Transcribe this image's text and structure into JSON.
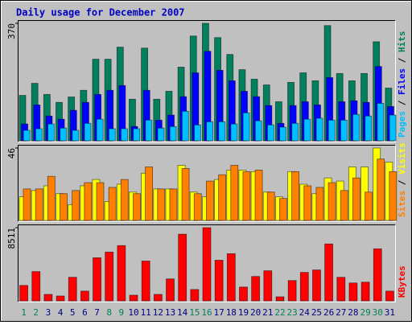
{
  "chart_data": [
    {
      "type": "bar",
      "title": "Daily usage for December 2007",
      "ylim": [
        0,
        370
      ],
      "yticks": [
        370
      ],
      "legend_separator": " / ",
      "series": [
        {
          "name": "Pages",
          "color": "#00c0ff",
          "values": [
            33,
            38,
            53,
            40,
            33,
            55,
            68,
            38,
            38,
            38,
            65,
            40,
            45,
            93,
            50,
            60,
            60,
            53,
            88,
            63,
            50,
            43,
            55,
            68,
            71,
            65,
            65,
            83,
            78,
            118,
            81
          ]
        },
        {
          "name": "Files",
          "color": "#0000ff",
          "values": [
            53,
            113,
            78,
            68,
            96,
            121,
            146,
            159,
            174,
            45,
            159,
            65,
            81,
            139,
            214,
            282,
            222,
            189,
            156,
            139,
            111,
            55,
            111,
            123,
            113,
            199,
            123,
            126,
            121,
            234,
            108
          ]
        },
        {
          "name": "Hits",
          "color": "#00805c",
          "values": [
            143,
            181,
            146,
            121,
            138,
            159,
            257,
            257,
            295,
            131,
            292,
            131,
            156,
            232,
            330,
            370,
            325,
            272,
            224,
            194,
            176,
            123,
            184,
            214,
            189,
            363,
            212,
            189,
            212,
            312,
            166
          ]
        }
      ]
    },
    {
      "type": "bar",
      "ylim": [
        0,
        46
      ],
      "yticks": [
        46
      ],
      "legend_separator": " / ",
      "series": [
        {
          "name": "Sites",
          "color": "#ff8000",
          "values": [
            20,
            20,
            28,
            17,
            19,
            24,
            24,
            21,
            26,
            17,
            34,
            20,
            20,
            33,
            17,
            25,
            29,
            35,
            31,
            32,
            18,
            14,
            31,
            22,
            21,
            24,
            19,
            27,
            18,
            39,
            31
          ]
        },
        {
          "name": "Visits",
          "color": "#ffff00",
          "values": [
            15,
            19,
            22,
            17,
            10,
            22,
            26,
            12,
            23,
            18,
            30,
            20,
            20,
            35,
            18,
            15,
            26,
            32,
            32,
            31,
            18,
            15,
            31,
            23,
            17,
            27,
            25,
            34,
            34,
            46,
            37
          ]
        }
      ]
    },
    {
      "type": "bar",
      "ylim": [
        0,
        8511
      ],
      "yticks": [
        8511
      ],
      "legend_separator": " / ",
      "categories": [
        "1",
        "2",
        "3",
        "4",
        "5",
        "6",
        "7",
        "8",
        "9",
        "10",
        "11",
        "12",
        "13",
        "14",
        "15",
        "16",
        "17",
        "18",
        "19",
        "20",
        "21",
        "22",
        "23",
        "24",
        "25",
        "26",
        "27",
        "28",
        "29",
        "30",
        "31"
      ],
      "label_colors": [
        "#00805c",
        "#00805c",
        "#000080",
        "#000080",
        "#000080",
        "#000080",
        "#000080",
        "#00805c",
        "#00805c",
        "#000080",
        "#000080",
        "#000080",
        "#000080",
        "#000080",
        "#00805c",
        "#00805c",
        "#000080",
        "#000080",
        "#000080",
        "#000080",
        "#000080",
        "#00805c",
        "#00805c",
        "#000080",
        "#000080",
        "#000080",
        "#000080",
        "#000080",
        "#00805c",
        "#00805c",
        "#000080"
      ],
      "series": [
        {
          "name": "KBytes",
          "color": "#ff0000",
          "values": [
            1797,
            3404,
            756,
            567,
            2742,
            1135,
            5012,
            5674,
            6430,
            662,
            4634,
            756,
            2553,
            7755,
            1324,
            8511,
            4728,
            5485,
            1608,
            2837,
            3499,
            473,
            2364,
            3310,
            3594,
            6619,
            2742,
            2080,
            2175,
            6052,
            1135
          ]
        }
      ]
    }
  ]
}
